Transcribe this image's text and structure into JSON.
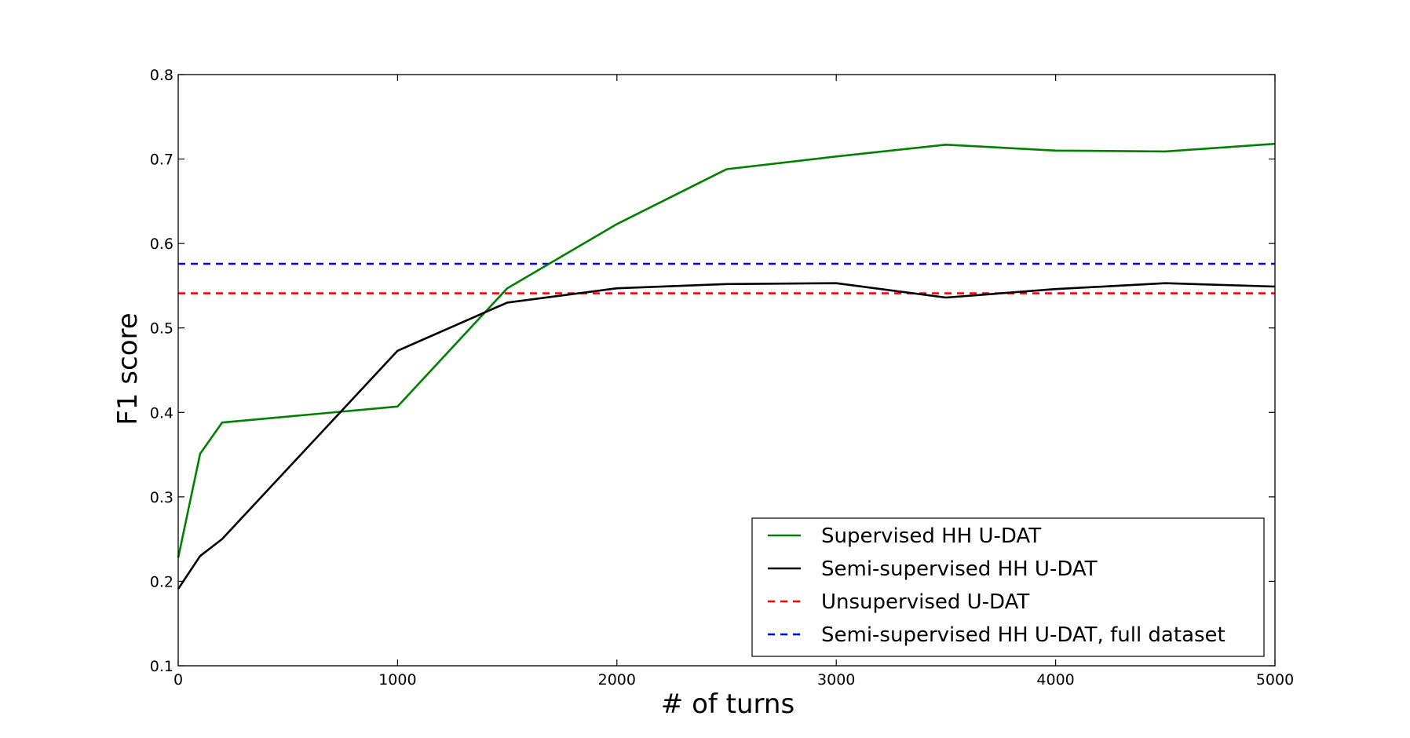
{
  "chart_data": {
    "type": "line",
    "title": "",
    "xlabel": "# of turns",
    "ylabel": "F1 score",
    "xlim": [
      0,
      5000
    ],
    "ylim": [
      0.1,
      0.8
    ],
    "xticks": [
      0,
      1000,
      2000,
      3000,
      4000,
      5000
    ],
    "yticks": [
      0.1,
      0.2,
      0.3,
      0.4,
      0.5,
      0.6,
      0.7,
      0.8
    ],
    "xtick_labels": [
      "0",
      "1000",
      "2000",
      "3000",
      "4000",
      "5000"
    ],
    "ytick_labels": [
      "0.1",
      "0.2",
      "0.3",
      "0.4",
      "0.5",
      "0.6",
      "0.7",
      "0.8"
    ],
    "grid": false,
    "legend_position": "lower-right",
    "series": [
      {
        "name": "Supervised HH U-DAT",
        "color": "#008000",
        "style": "solid",
        "x": [
          0,
          100,
          200,
          1000,
          1500,
          2000,
          2500,
          3000,
          3500,
          4000,
          4500,
          5000
        ],
        "y": [
          0.228,
          0.351,
          0.388,
          0.407,
          0.547,
          0.623,
          0.688,
          0.703,
          0.717,
          0.71,
          0.709,
          0.718
        ]
      },
      {
        "name": "Semi-supervised HH U-DAT",
        "color": "#000000",
        "style": "solid",
        "x": [
          0,
          100,
          200,
          1000,
          1500,
          2000,
          2500,
          3000,
          3500,
          4000,
          4500,
          5000
        ],
        "y": [
          0.191,
          0.23,
          0.25,
          0.473,
          0.53,
          0.547,
          0.552,
          0.553,
          0.536,
          0.546,
          0.553,
          0.549
        ]
      },
      {
        "name": "Unsupervised U-DAT",
        "color": "#ff0000",
        "style": "dashed",
        "x": [
          0,
          5000
        ],
        "y": [
          0.541,
          0.541
        ]
      },
      {
        "name": "Semi-supervised HH U-DAT, full dataset",
        "color": "#0000ff",
        "style": "dashed",
        "x": [
          0,
          5000
        ],
        "y": [
          0.576,
          0.576
        ]
      }
    ]
  }
}
